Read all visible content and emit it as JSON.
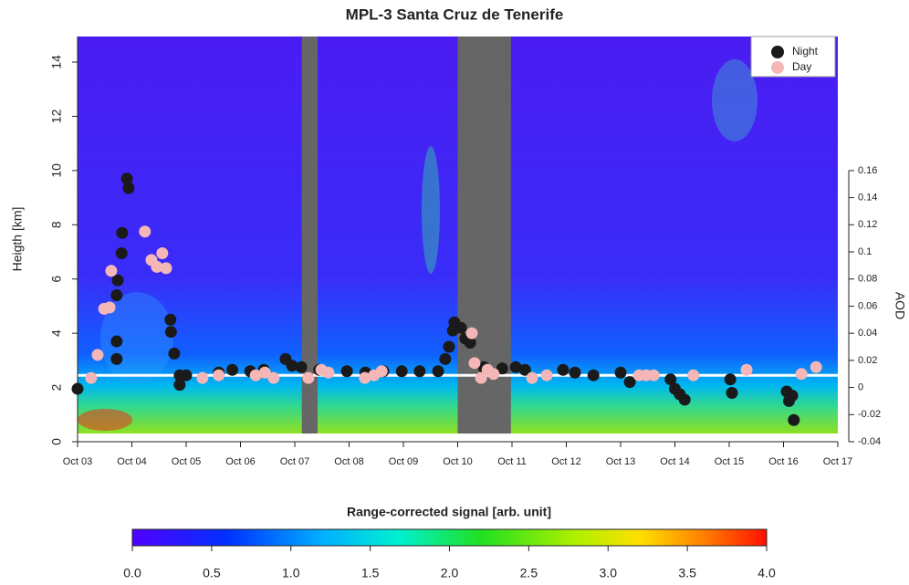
{
  "chart_data": {
    "type": "scatter",
    "title": "MPL-3 Santa Cruz de Tenerife",
    "ylabel": "Heigth [km]",
    "y2label": "AOD",
    "xlim": [
      3,
      17
    ],
    "xticks": [
      {
        "value": 3,
        "label": "Oct 03"
      },
      {
        "value": 4,
        "label": "Oct 04"
      },
      {
        "value": 5,
        "label": "Oct 05"
      },
      {
        "value": 6,
        "label": "Oct 06"
      },
      {
        "value": 7,
        "label": "Oct 07"
      },
      {
        "value": 8,
        "label": "Oct 08"
      },
      {
        "value": 9,
        "label": "Oct 09"
      },
      {
        "value": 10,
        "label": "Oct 10"
      },
      {
        "value": 11,
        "label": "Oct 11"
      },
      {
        "value": 12,
        "label": "Oct 12"
      },
      {
        "value": 13,
        "label": "Oct 13"
      },
      {
        "value": 14,
        "label": "Oct 14"
      },
      {
        "value": 15,
        "label": "Oct 15"
      },
      {
        "value": 16,
        "label": "Oct 16"
      },
      {
        "value": 17,
        "label": "Oct 17"
      }
    ],
    "ylim": [
      0,
      15
    ],
    "yticks": [
      0,
      2,
      4,
      6,
      8,
      10,
      12,
      14
    ],
    "y2lim": [
      -0.04,
      0.26
    ],
    "y2ticks": [
      -0.04,
      -0.02,
      0,
      0.02,
      0.04,
      0.06,
      0.08,
      0.1,
      0.12,
      0.14,
      0.16
    ],
    "legend": "top-right",
    "no_data": [
      [
        7.13,
        7.42
      ],
      [
        10.0,
        10.98
      ]
    ],
    "reference_line": {
      "value": 0.009,
      "axis": "y2",
      "color": "#ffffff"
    },
    "series": [
      {
        "name": "Night",
        "color": "#1a1a1a",
        "axis": "y2",
        "x": [
          3.0,
          3.72,
          3.72,
          3.72,
          3.74,
          3.81,
          3.82,
          3.91,
          3.94,
          4.71,
          4.72,
          4.78,
          4.88,
          4.88,
          5.0,
          5.6,
          5.85,
          6.18,
          6.43,
          6.83,
          6.95,
          7.12,
          7.45,
          7.96,
          8.3,
          8.63,
          8.97,
          9.3,
          9.64,
          9.77,
          9.84,
          9.91,
          9.94,
          10.06,
          10.14,
          10.23,
          10.48,
          10.82,
          11.07,
          11.24,
          11.94,
          12.16,
          12.5,
          13.0,
          13.17,
          13.92,
          14.0,
          14.09,
          14.18,
          15.02,
          15.05,
          16.06,
          16.1,
          16.16,
          16.19
        ],
        "values": [
          -0.001,
          0.021,
          0.034,
          0.068,
          0.079,
          0.099,
          0.114,
          0.154,
          0.147,
          0.05,
          0.041,
          0.025,
          0.009,
          0.002,
          0.009,
          0.011,
          0.013,
          0.012,
          0.013,
          0.021,
          0.016,
          0.015,
          0.013,
          0.012,
          0.011,
          0.012,
          0.012,
          0.012,
          0.012,
          0.021,
          0.03,
          0.042,
          0.048,
          0.044,
          0.036,
          0.033,
          0.015,
          0.014,
          0.015,
          0.013,
          0.013,
          0.011,
          0.009,
          0.011,
          0.004,
          0.006,
          -0.001,
          -0.005,
          -0.009,
          0.006,
          -0.004,
          -0.003,
          -0.01,
          -0.006,
          -0.024
        ]
      },
      {
        "name": "Day",
        "color": "#f4b6b6",
        "axis": "y2",
        "x": [
          3.25,
          3.37,
          3.49,
          3.59,
          3.62,
          4.24,
          4.36,
          4.46,
          4.56,
          4.63,
          5.3,
          5.6,
          6.28,
          6.45,
          6.61,
          7.25,
          7.49,
          7.62,
          8.29,
          8.46,
          8.6,
          10.26,
          10.31,
          10.43,
          10.55,
          10.66,
          11.37,
          11.64,
          13.34,
          13.47,
          13.61,
          14.34,
          15.32,
          16.33,
          16.6
        ],
        "values": [
          0.007,
          0.024,
          0.058,
          0.059,
          0.086,
          0.115,
          0.094,
          0.089,
          0.099,
          0.088,
          0.007,
          0.009,
          0.009,
          0.011,
          0.007,
          0.007,
          0.013,
          0.011,
          0.007,
          0.009,
          0.012,
          0.04,
          0.018,
          0.007,
          0.013,
          0.01,
          0.007,
          0.009,
          0.009,
          0.009,
          0.009,
          0.009,
          0.013,
          0.01,
          0.015
        ]
      }
    ],
    "colorbar": {
      "title": "Range-corrected signal [arb. unit]",
      "lim": [
        0,
        4
      ],
      "ticks": [
        {
          "value": 0,
          "label": "0.0"
        },
        {
          "value": 0.5,
          "label": "0.5"
        },
        {
          "value": 1,
          "label": "1.0"
        },
        {
          "value": 1.5,
          "label": "1.5"
        },
        {
          "value": 2,
          "label": "2.0"
        },
        {
          "value": 2.5,
          "label": "2.5"
        },
        {
          "value": 3,
          "label": "3.0"
        },
        {
          "value": 3.5,
          "label": "3.5"
        },
        {
          "value": 4,
          "label": "4.0"
        }
      ]
    }
  }
}
